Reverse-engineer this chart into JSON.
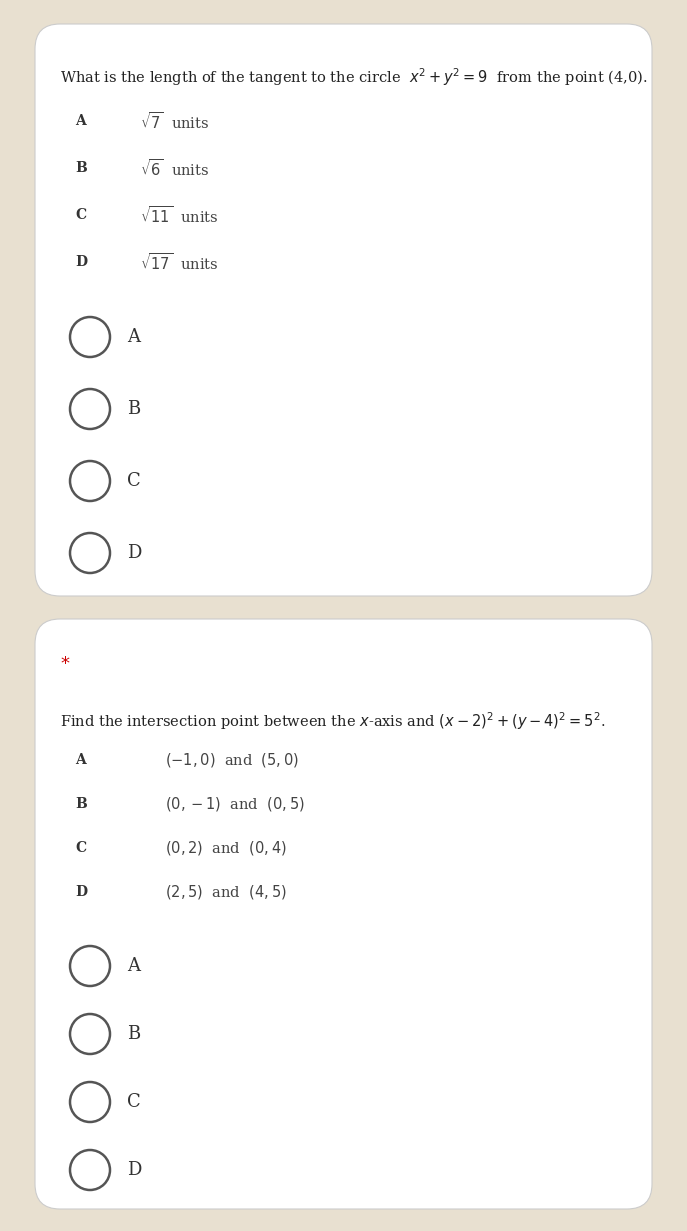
{
  "bg_outer": "#e8e0d0",
  "bg_card": "#ffffff",
  "q1": {
    "question": "What is the length of the tangent to the circle  $x^2 + y^2 = 9$  from the point (4,0).",
    "opt_labels": [
      "A",
      "B",
      "C",
      "D"
    ],
    "opt_texts": [
      "$\\sqrt{7}$  units",
      "$\\sqrt{6}$  units",
      "$\\sqrt{11}$  units",
      "$\\sqrt{17}$  units"
    ],
    "radio_labels": [
      "A",
      "B",
      "C",
      "D"
    ]
  },
  "q2": {
    "star": "*",
    "question": "Find the intersection point between the $x$-axis and $(x-2)^2+(y-4)^2=5^2$.",
    "opt_labels": [
      "A",
      "B",
      "C",
      "D"
    ],
    "opt_texts": [
      "$(-1,0)$  and  $(5,0)$",
      "$(0,-1)$  and  $(0,5)$",
      "$(0,2)$  and  $(0,4)$",
      "$(2,5)$  and  $(4,5)$"
    ],
    "radio_labels": [
      "A",
      "B",
      "C",
      "D"
    ]
  },
  "text_color": "#222222",
  "label_color": "#333333",
  "option_text_color": "#444444",
  "circle_color": "#555555",
  "star_color": "#cc0000"
}
